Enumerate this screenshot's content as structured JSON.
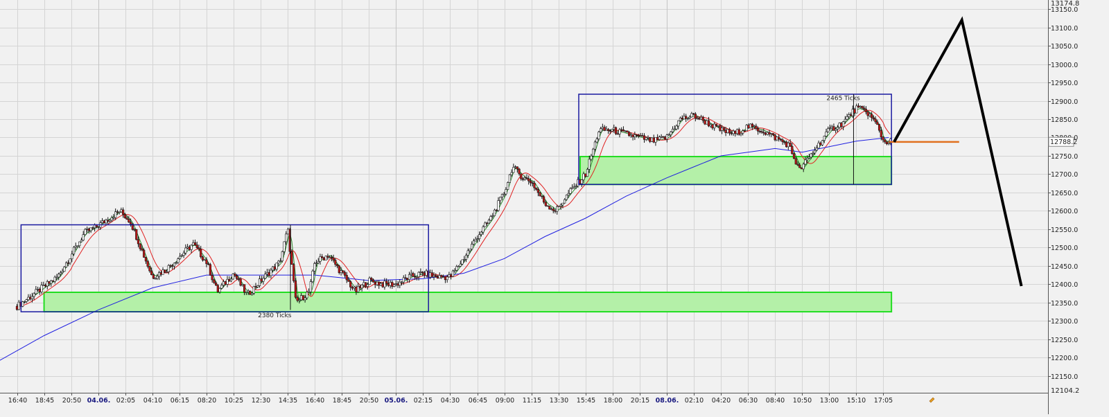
{
  "chart_data": {
    "type": "candlestick",
    "title": "",
    "xlabel": "",
    "ylabel": "",
    "ylim": [
      12104.2,
      13174.8
    ],
    "y_ticks": [
      12150,
      12200,
      12250,
      12300,
      12350,
      12400,
      12450,
      12500,
      12550,
      12600,
      12650,
      12700,
      12750,
      12800,
      12850,
      12900,
      12950,
      13000,
      13050,
      13100,
      13150
    ],
    "y_top_label": "13174.8",
    "y_bottom_label": "12104.2",
    "last_price": 12788.2,
    "last_price_label": "12788.2",
    "x_ticks": [
      {
        "label": "16:40",
        "bold": false
      },
      {
        "label": "18:45",
        "bold": false
      },
      {
        "label": "20:50",
        "bold": false
      },
      {
        "label": "04.06.",
        "bold": true
      },
      {
        "label": "02:05",
        "bold": false
      },
      {
        "label": "04:10",
        "bold": false
      },
      {
        "label": "06:15",
        "bold": false
      },
      {
        "label": "08:20",
        "bold": false
      },
      {
        "label": "10:25",
        "bold": false
      },
      {
        "label": "12:30",
        "bold": false
      },
      {
        "label": "14:35",
        "bold": false
      },
      {
        "label": "16:40",
        "bold": false
      },
      {
        "label": "18:45",
        "bold": false
      },
      {
        "label": "20:50",
        "bold": false
      },
      {
        "label": "05.06.",
        "bold": true
      },
      {
        "label": "02:15",
        "bold": false
      },
      {
        "label": "04:30",
        "bold": false
      },
      {
        "label": "06:45",
        "bold": false
      },
      {
        "label": "09:00",
        "bold": false
      },
      {
        "label": "11:15",
        "bold": false
      },
      {
        "label": "13:30",
        "bold": false
      },
      {
        "label": "15:45",
        "bold": false
      },
      {
        "label": "18:00",
        "bold": false
      },
      {
        "label": "20:15",
        "bold": false
      },
      {
        "label": "08.06.",
        "bold": true
      },
      {
        "label": "02:10",
        "bold": false
      },
      {
        "label": "04:20",
        "bold": false
      },
      {
        "label": "06:30",
        "bold": false
      },
      {
        "label": "08:40",
        "bold": false
      },
      {
        "label": "10:50",
        "bold": false
      },
      {
        "label": "13:00",
        "bold": false
      },
      {
        "label": "15:10",
        "bold": false
      },
      {
        "label": "17:05",
        "bold": false
      }
    ],
    "price_path": [
      [
        0,
        12340
      ],
      [
        1.5,
        12420
      ],
      [
        2.5,
        12540
      ],
      [
        3,
        12560
      ],
      [
        3.8,
        12600
      ],
      [
        4.2,
        12570
      ],
      [
        5,
        12420
      ],
      [
        5.5,
        12440
      ],
      [
        6.5,
        12510
      ],
      [
        7,
        12460
      ],
      [
        7.4,
        12380
      ],
      [
        8,
        12430
      ],
      [
        8.5,
        12370
      ],
      [
        9,
        12410
      ],
      [
        9.7,
        12460
      ],
      [
        10,
        12550
      ],
      [
        10.3,
        12350
      ],
      [
        10.8,
        12380
      ],
      [
        11,
        12460
      ],
      [
        11.5,
        12480
      ],
      [
        12,
        12430
      ],
      [
        12.5,
        12380
      ],
      [
        13,
        12410
      ],
      [
        13.5,
        12400
      ],
      [
        14,
        12400
      ],
      [
        14.5,
        12420
      ],
      [
        15,
        12430
      ],
      [
        15.5,
        12420
      ],
      [
        16,
        12420
      ],
      [
        16.5,
        12470
      ],
      [
        17,
        12530
      ],
      [
        17.5,
        12580
      ],
      [
        18,
        12650
      ],
      [
        18.3,
        12720
      ],
      [
        18.7,
        12690
      ],
      [
        19,
        12680
      ],
      [
        19.5,
        12620
      ],
      [
        19.9,
        12600
      ],
      [
        20.4,
        12650
      ],
      [
        21,
        12700
      ],
      [
        21.5,
        12820
      ],
      [
        22,
        12820
      ],
      [
        22.5,
        12810
      ],
      [
        23,
        12800
      ],
      [
        23.5,
        12790
      ],
      [
        24,
        12800
      ],
      [
        24.5,
        12850
      ],
      [
        25,
        12860
      ],
      [
        25.5,
        12840
      ],
      [
        26,
        12820
      ],
      [
        26.5,
        12810
      ],
      [
        27,
        12830
      ],
      [
        27.5,
        12820
      ],
      [
        28,
        12800
      ],
      [
        28.5,
        12780
      ],
      [
        28.9,
        12710
      ],
      [
        29.3,
        12750
      ],
      [
        30,
        12820
      ],
      [
        30.5,
        12840
      ],
      [
        31,
        12880
      ],
      [
        31.4,
        12870
      ],
      [
        31.8,
        12830
      ],
      [
        32,
        12790
      ],
      [
        32.3,
        12788
      ]
    ],
    "series": [
      {
        "key": "fast_ma",
        "color": "#2e8b2e",
        "lag": 0.15
      },
      {
        "key": "mid_ma",
        "color": "#e02020",
        "lag": 0.6
      },
      {
        "key": "slow_ma",
        "color": "#2020e0"
      }
    ],
    "slow_ma_path": [
      [
        -0.7,
        12190
      ],
      [
        1,
        12260
      ],
      [
        3,
        12330
      ],
      [
        5,
        12390
      ],
      [
        7,
        12425
      ],
      [
        9,
        12425
      ],
      [
        11,
        12425
      ],
      [
        13,
        12410
      ],
      [
        15,
        12415
      ],
      [
        16.5,
        12430
      ],
      [
        18,
        12470
      ],
      [
        19.5,
        12530
      ],
      [
        21,
        12580
      ],
      [
        22.5,
        12640
      ],
      [
        24,
        12690
      ],
      [
        25,
        12720
      ],
      [
        26,
        12750
      ],
      [
        27,
        12760
      ],
      [
        28,
        12770
      ],
      [
        29,
        12760
      ],
      [
        30,
        12775
      ],
      [
        31,
        12790
      ],
      [
        32.2,
        12800
      ]
    ],
    "boxes": [
      {
        "id": "range-box-1",
        "x0": 0.15,
        "x1": 15.2,
        "y0": 12325,
        "y1": 12562,
        "stroke": "#1a1aa0"
      },
      {
        "id": "range-box-2",
        "x0": 20.75,
        "x1": 32.3,
        "y0": 12672,
        "y1": 12918,
        "stroke": "#1a1aa0"
      }
    ],
    "zones": [
      {
        "id": "support-zone-1",
        "x0": 1,
        "x1": 32.3,
        "y0": 12325,
        "y1": 12378
      },
      {
        "id": "support-zone-2",
        "x0": 20.8,
        "x1": 32.3,
        "y0": 12672,
        "y1": 12748
      }
    ],
    "projection": [
      [
        32.4,
        12788
      ],
      [
        34.9,
        13120
      ],
      [
        37.1,
        12395
      ]
    ],
    "level_line": {
      "x0": 32.2,
      "x1": 34.8,
      "y": 12788,
      "color": "#e0701e"
    },
    "dividers": [
      {
        "x": 10.1,
        "y0": 12330,
        "y1": 12562
      },
      {
        "x": 30.9,
        "y0": 12672,
        "y1": 12918
      }
    ],
    "annotations": [
      {
        "text": "2380 Ticks",
        "x": 8.9,
        "y": 12310
      },
      {
        "text": "2465 Ticks",
        "x": 29.9,
        "y": 12902
      }
    ]
  }
}
